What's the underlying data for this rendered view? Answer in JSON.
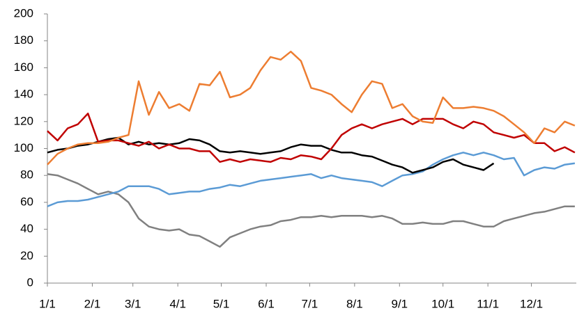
{
  "chart_data": {
    "type": "line",
    "x": [
      0,
      7,
      14,
      21,
      28,
      35,
      42,
      49,
      56,
      63,
      70,
      77,
      84,
      91,
      98,
      105,
      112,
      119,
      126,
      133,
      140,
      147,
      154,
      161,
      168,
      175,
      182,
      189,
      196,
      203,
      210,
      217,
      224,
      231,
      238,
      245,
      252,
      259,
      266,
      273,
      280,
      287,
      294,
      301,
      308,
      315,
      322,
      329,
      336,
      343,
      350,
      357,
      364
    ],
    "xlim": [
      0,
      365
    ],
    "xticks": [
      {
        "value": 0,
        "label": "1/1"
      },
      {
        "value": 31,
        "label": "2/1"
      },
      {
        "value": 59,
        "label": "3/1"
      },
      {
        "value": 90,
        "label": "4/1"
      },
      {
        "value": 120,
        "label": "5/1"
      },
      {
        "value": 151,
        "label": "6/1"
      },
      {
        "value": 181,
        "label": "7/1"
      },
      {
        "value": 212,
        "label": "8/1"
      },
      {
        "value": 243,
        "label": "9/1"
      },
      {
        "value": 273,
        "label": "10/1"
      },
      {
        "value": 304,
        "label": "11/1"
      },
      {
        "value": 334,
        "label": "12/1"
      }
    ],
    "ylim": [
      0,
      200
    ],
    "yticks": [
      0,
      20,
      40,
      60,
      80,
      100,
      120,
      140,
      160,
      180,
      200
    ],
    "series": [
      {
        "color": "#808080",
        "values": [
          81,
          80,
          77,
          74,
          70,
          66,
          68,
          66,
          60,
          48,
          42,
          40,
          39,
          40,
          36,
          35,
          31,
          27,
          34,
          37,
          40,
          42,
          43,
          46,
          47,
          49,
          49,
          50,
          49,
          50,
          50,
          50,
          49,
          50,
          48,
          44,
          44,
          45,
          44,
          44,
          46,
          46,
          44,
          42,
          42,
          46,
          48,
          50,
          52,
          53,
          55,
          57,
          57
        ]
      },
      {
        "color": "#5B9BD5",
        "values": [
          57,
          60,
          61,
          61,
          62,
          64,
          66,
          68,
          72,
          72,
          72,
          70,
          66,
          67,
          68,
          68,
          70,
          71,
          73,
          72,
          74,
          76,
          77,
          78,
          79,
          80,
          81,
          78,
          80,
          78,
          77,
          76,
          75,
          72,
          76,
          80,
          81,
          83,
          88,
          92,
          95,
          97,
          95,
          97,
          95,
          92,
          93,
          80,
          84,
          86,
          85,
          88,
          89
        ]
      },
      {
        "color": "#000000",
        "values": [
          97,
          99,
          100,
          102,
          103,
          105,
          107,
          108,
          103,
          105,
          103,
          104,
          103,
          104,
          107,
          106,
          103,
          98,
          97,
          98,
          97,
          96,
          97,
          98,
          101,
          103,
          102,
          102,
          99,
          97,
          97,
          95,
          94,
          91,
          88,
          86,
          82,
          84,
          86,
          90,
          92,
          88,
          86,
          84,
          89,
          null,
          null,
          null,
          null,
          null,
          null,
          null,
          null
        ]
      },
      {
        "color": "#C00000",
        "values": [
          113,
          106,
          115,
          118,
          126,
          105,
          106,
          106,
          104,
          102,
          105,
          100,
          103,
          100,
          100,
          98,
          98,
          90,
          92,
          90,
          92,
          91,
          90,
          93,
          92,
          95,
          94,
          92,
          100,
          110,
          115,
          118,
          115,
          118,
          120,
          122,
          118,
          122,
          122,
          122,
          118,
          115,
          120,
          118,
          112,
          110,
          108,
          110,
          104,
          104,
          98,
          101,
          97
        ]
      },
      {
        "color": "#ED7D31",
        "values": [
          88,
          96,
          100,
          103,
          104,
          104,
          105,
          108,
          110,
          150,
          125,
          142,
          130,
          133,
          128,
          148,
          147,
          157,
          138,
          140,
          145,
          158,
          168,
          166,
          172,
          165,
          145,
          143,
          140,
          133,
          127,
          140,
          150,
          148,
          130,
          133,
          124,
          120,
          119,
          138,
          130,
          130,
          131,
          130,
          128,
          124,
          118,
          112,
          104,
          115,
          112,
          120,
          117
        ]
      }
    ]
  }
}
